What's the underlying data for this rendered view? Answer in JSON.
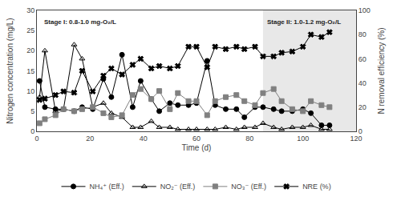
{
  "chart_data": {
    "type": "line",
    "x_label": "Time (d)",
    "y_label": "Nitrogen concentration (mg/L)",
    "y2_label": "N removal efficiency (%)",
    "x": [
      1,
      3,
      7,
      10,
      14,
      17,
      21,
      25,
      28,
      32,
      36,
      39,
      43,
      46,
      50,
      53,
      57,
      60,
      64,
      67,
      71,
      75,
      78,
      82,
      85,
      89,
      92,
      96,
      100,
      103,
      107,
      110
    ],
    "series": [
      {
        "name": "NH₄⁺ (Eff.)",
        "color": "black",
        "marker": "circle",
        "values": [
          12.5,
          6.0,
          5.5,
          5.5,
          5.0,
          6.0,
          5.5,
          13.0,
          8.5,
          19.0,
          6.0,
          12.5,
          8.0,
          5.0,
          7.0,
          6.5,
          6.5,
          7.0,
          17.5,
          6.5,
          5.5,
          5.5,
          3.5,
          6.0,
          6.0,
          5.5,
          5.0,
          5.0,
          5.5,
          4.5,
          1.5,
          1.5
        ]
      },
      {
        "name": "NO₂⁻ (Eff.)",
        "color": "black",
        "marker": "triangle-up-open",
        "values": [
          8.5,
          20.0,
          5.0,
          5.5,
          21.5,
          18.0,
          6.0,
          7.0,
          4.5,
          3.5,
          1.0,
          1.0,
          2.5,
          1.0,
          1.0,
          0.5,
          0.5,
          0.5,
          0.5,
          0.5,
          1.0,
          0.5,
          1.0,
          1.0,
          2.0,
          1.0,
          0.5,
          1.0,
          1.0,
          1.5,
          0.5,
          0.5
        ]
      },
      {
        "name": "NO₃⁻ (Eff.)",
        "color": "gray",
        "marker": "square",
        "values": [
          2.0,
          3.0,
          4.0,
          5.5,
          5.0,
          5.5,
          6.0,
          4.5,
          3.5,
          4.0,
          9.0,
          10.5,
          8.0,
          10.0,
          5.5,
          9.5,
          7.5,
          7.5,
          4.0,
          7.5,
          8.5,
          9.0,
          7.5,
          6.5,
          9.5,
          10.5,
          7.5,
          5.5,
          5.0,
          7.5,
          6.5,
          6.0
        ]
      },
      {
        "name": "NRE (%)",
        "color": "black",
        "marker": "x",
        "axis": "y2",
        "values": [
          26,
          27,
          30,
          33,
          32,
          50,
          33,
          46,
          52,
          47,
          55,
          60,
          52,
          54,
          52,
          54,
          70,
          70,
          53,
          70,
          68,
          70,
          68,
          70,
          62,
          62,
          65,
          66,
          70,
          80,
          78,
          82
        ]
      }
    ],
    "xlim": [
      0,
      120
    ],
    "xticks": [
      0,
      20,
      40,
      60,
      80,
      100,
      120
    ],
    "ylim": [
      0,
      30
    ],
    "yticks": [
      0,
      5,
      10,
      15,
      20,
      25,
      30
    ],
    "y2lim": [
      0,
      100
    ],
    "y2ticks": [
      0,
      20,
      40,
      60,
      80,
      100
    ],
    "shaded_span": {
      "x": [
        85,
        120
      ],
      "color": "#e8e8e8"
    },
    "annotations": [
      {
        "text": "Stage I: 0.8-1.0 mg-O₂/L",
        "x": 2,
        "y": 28.5
      },
      {
        "text": "Stage II: 1.0-1.2 mg-O₂/L",
        "x": 86,
        "y": 28.5
      }
    ],
    "grid": false,
    "legend": "bottom"
  }
}
